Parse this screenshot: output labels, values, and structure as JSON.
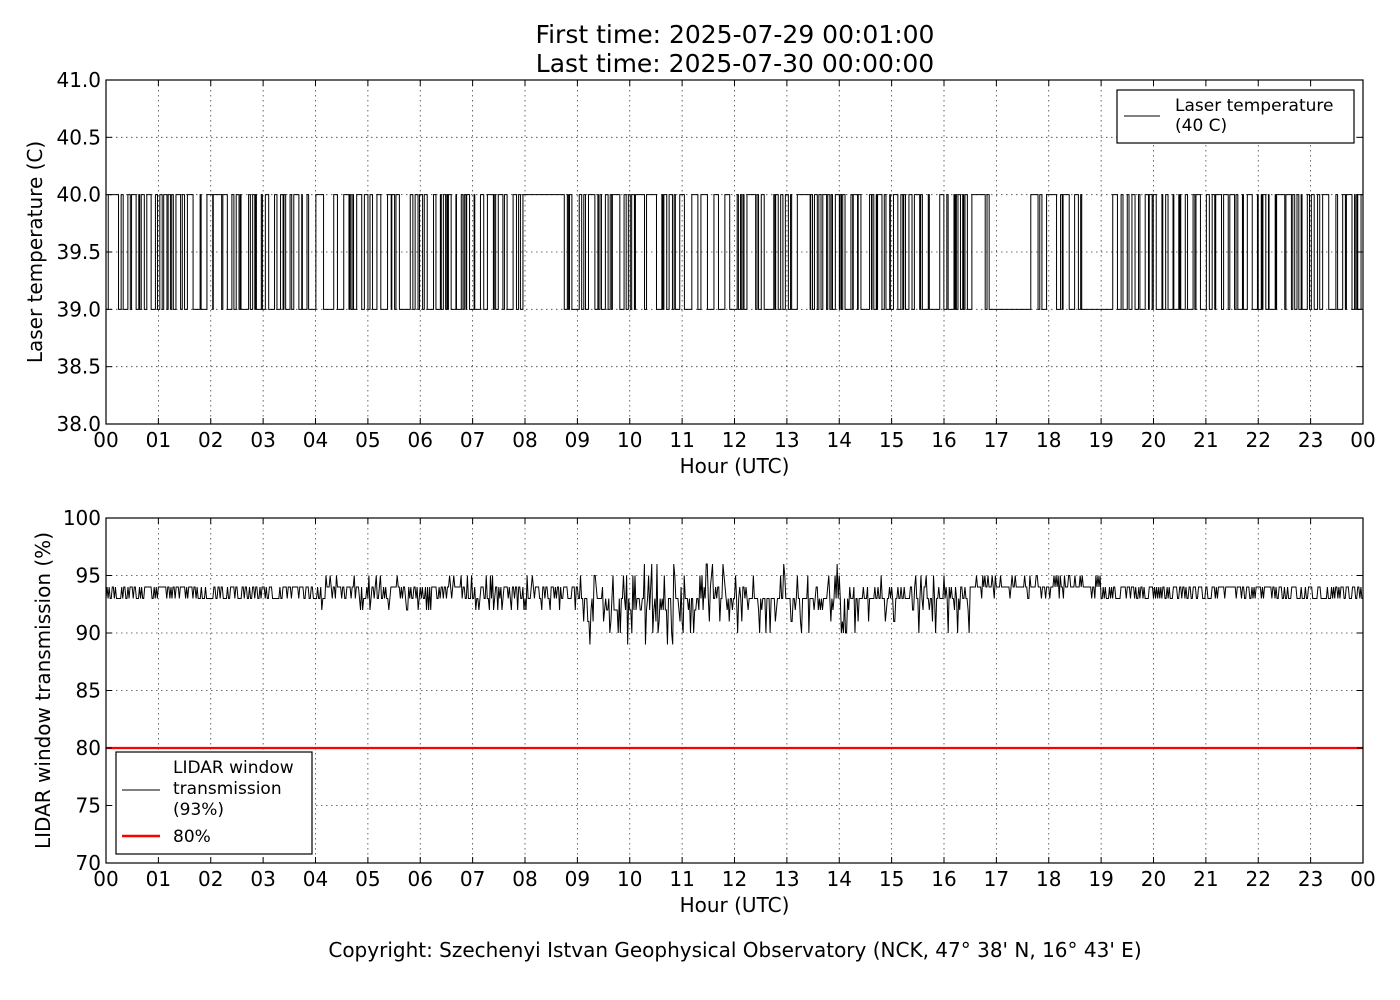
{
  "title": {
    "line1": "First time: 2025-07-29 00:01:00",
    "line2": "Last time: 2025-07-30 00:00:00"
  },
  "footer": {
    "copyright": "Copyright: Szechenyi Istvan Geophysical Observatory (NCK, 47° 38' N, 16° 43' E)"
  },
  "chart_data": [
    {
      "type": "line",
      "xlabel": "Hour (UTC)",
      "ylabel": "Laser temperature (C)",
      "xlim": [
        0,
        24
      ],
      "ylim": [
        38.0,
        41.0
      ],
      "grid": true,
      "legend_position": "top-right",
      "x_ticks": [
        "00",
        "01",
        "02",
        "03",
        "04",
        "05",
        "06",
        "07",
        "08",
        "09",
        "10",
        "11",
        "12",
        "13",
        "14",
        "15",
        "16",
        "17",
        "18",
        "19",
        "20",
        "21",
        "22",
        "23",
        "00"
      ],
      "y_ticks": [
        "38.0",
        "38.5",
        "39.0",
        "39.5",
        "40.0",
        "40.5",
        "41.0"
      ],
      "y_tick_values": [
        38.0,
        38.5,
        39.0,
        39.5,
        40.0,
        40.5,
        41.0
      ],
      "series": [
        {
          "name": "Laser temperature\n(40 C)",
          "legend_lines": [
            "Laser temperature",
            "(40 C)"
          ],
          "color": "#000000",
          "description": "Value toggles between 39.0 and 40.0 throughout the day; steady 40.0 around 08:00-08:50; steady 39.0 around 17:00-17:40 and 18:40-19:20",
          "levels": [
            39.0,
            40.0
          ],
          "segments": [
            {
              "from": 0.0,
              "to": 8.0,
              "mode": "toggle"
            },
            {
              "from": 8.0,
              "to": 8.75,
              "value": 40.0
            },
            {
              "from": 8.75,
              "to": 16.9,
              "mode": "toggle"
            },
            {
              "from": 16.9,
              "to": 17.6,
              "value": 39.0
            },
            {
              "from": 17.6,
              "to": 18.65,
              "mode": "toggle"
            },
            {
              "from": 18.65,
              "to": 19.2,
              "value": 39.0
            },
            {
              "from": 19.2,
              "to": 24.0,
              "mode": "toggle"
            }
          ]
        }
      ]
    },
    {
      "type": "line",
      "xlabel": "Hour (UTC)",
      "ylabel": "LIDAR window transmission (%)",
      "xlim": [
        0,
        24
      ],
      "ylim": [
        70,
        100
      ],
      "grid": true,
      "legend_position": "lower-left",
      "x_ticks": [
        "00",
        "01",
        "02",
        "03",
        "04",
        "05",
        "06",
        "07",
        "08",
        "09",
        "10",
        "11",
        "12",
        "13",
        "14",
        "15",
        "16",
        "17",
        "18",
        "19",
        "20",
        "21",
        "22",
        "23",
        "00"
      ],
      "y_ticks": [
        "70",
        "75",
        "80",
        "85",
        "90",
        "95",
        "100"
      ],
      "y_tick_values": [
        70,
        75,
        80,
        85,
        90,
        95,
        100
      ],
      "series": [
        {
          "name": "LIDAR window\ntransmission\n(93%)",
          "legend_lines": [
            "LIDAR window",
            "transmission",
            "(93%)"
          ],
          "color": "#000000",
          "description": "Noisy transmission mostly 93-95%, dipping to ~89-90% around 09:00-11:30",
          "profile": [
            {
              "from": 0,
              "to": 4,
              "min": 93,
              "max": 94
            },
            {
              "from": 4,
              "to": 9,
              "min": 92,
              "max": 95
            },
            {
              "from": 9,
              "to": 11.5,
              "min": 89,
              "max": 96
            },
            {
              "from": 11.5,
              "to": 16.5,
              "min": 90,
              "max": 96
            },
            {
              "from": 16.5,
              "to": 19,
              "min": 93,
              "max": 95
            },
            {
              "from": 19,
              "to": 24,
              "min": 93,
              "max": 94
            }
          ]
        },
        {
          "name": "80%",
          "legend_lines": [
            "80%"
          ],
          "color": "#ff0000",
          "x": [
            0,
            24
          ],
          "y": [
            80,
            80
          ]
        }
      ]
    }
  ]
}
